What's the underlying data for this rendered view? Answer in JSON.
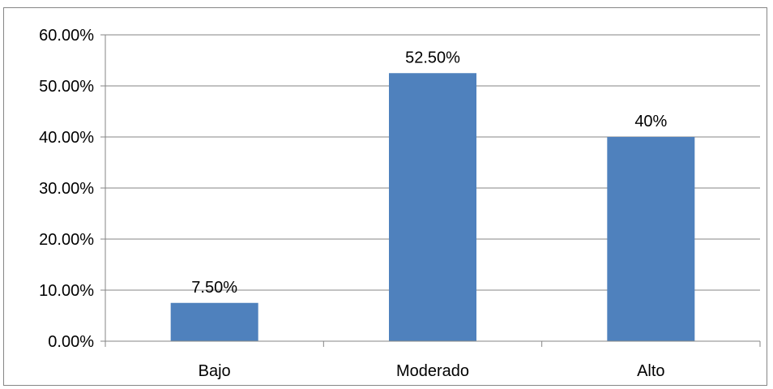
{
  "chart_data": {
    "type": "bar",
    "title": "",
    "xlabel": "",
    "ylabel": "",
    "categories": [
      "Bajo",
      "Moderado",
      "Alto"
    ],
    "values": [
      7.5,
      52.5,
      40
    ],
    "data_labels": [
      "7.50%",
      "52.50%",
      "40%"
    ],
    "ylim": [
      0,
      60
    ],
    "yticks": [
      0,
      10,
      20,
      30,
      40,
      50,
      60
    ],
    "ytick_labels": [
      "0.00%",
      "10.00%",
      "20.00%",
      "30.00%",
      "40.00%",
      "50.00%",
      "60.00%"
    ],
    "grid": true,
    "legend": "none",
    "colors": {
      "bar": "#4f81bd",
      "grid": "#868686",
      "axis": "#868686"
    }
  }
}
